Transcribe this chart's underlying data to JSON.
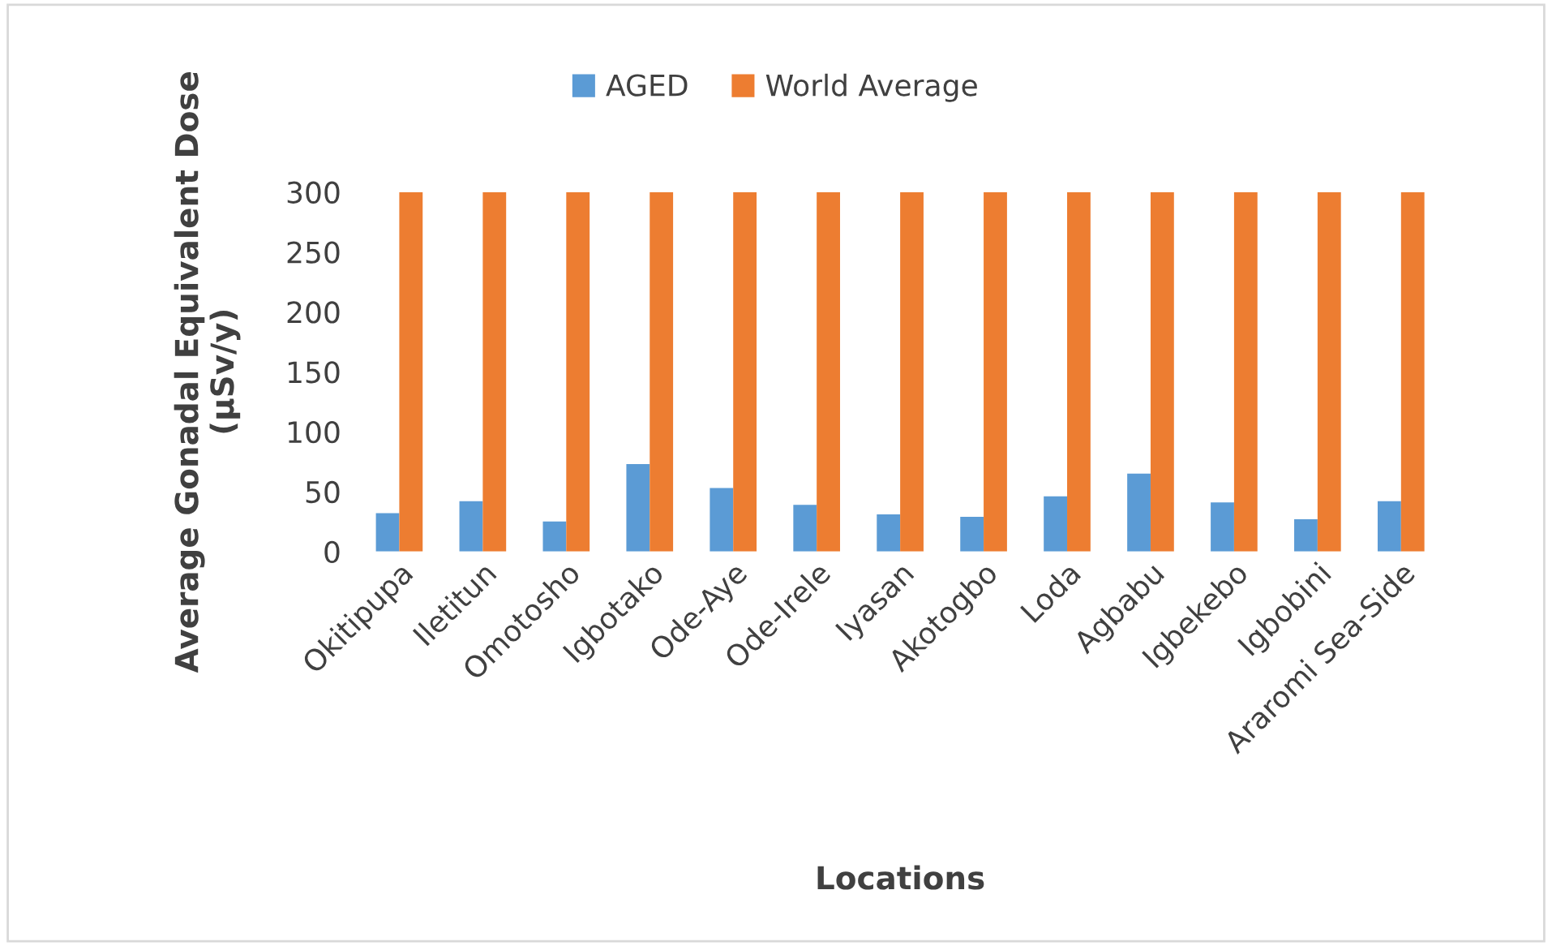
{
  "chart_data": {
    "type": "bar",
    "xlabel": "Locations",
    "ylabel": "Average Gonadal Equivalent Dose\n(µSv/y)",
    "categories": [
      "Okitipupa",
      "Iletitun",
      "Omotosho",
      "Igbotako",
      "Ode-Aye",
      "Ode-Irele",
      "Iyasan",
      "Akotogbo",
      "Loda",
      "Agbabu",
      "Igbekebo",
      "Igbobini",
      "Araromi Sea-Side"
    ],
    "series": [
      {
        "name": "AGED",
        "color": "#5b9bd5",
        "values": [
          32,
          42,
          25,
          73,
          53,
          39,
          31,
          29,
          46,
          65,
          41,
          27,
          42
        ]
      },
      {
        "name": "World Average",
        "color": "#ed7d31",
        "values": [
          300,
          300,
          300,
          300,
          300,
          300,
          300,
          300,
          300,
          300,
          300,
          300,
          300
        ]
      }
    ],
    "ylim": [
      0,
      300
    ],
    "yticks": [
      0,
      50,
      100,
      150,
      200,
      250,
      300
    ],
    "grid": false,
    "legend": "top"
  }
}
